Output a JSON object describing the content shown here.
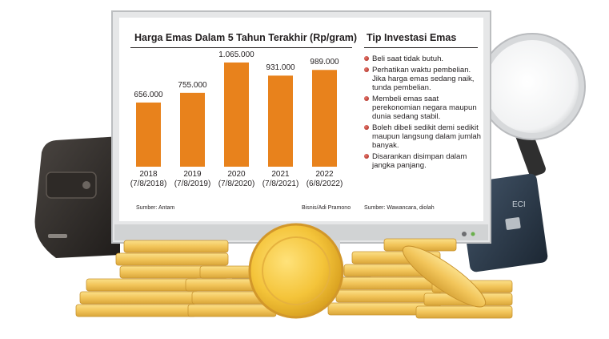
{
  "chart_data": {
    "type": "bar",
    "title": "Harga Emas Dalam 5 Tahun Terakhir (Rp/gram)",
    "categories": [
      [
        "2018",
        "(7/8/2018)"
      ],
      [
        "2019",
        "(7/8/2019)"
      ],
      [
        "2020",
        "(7/8/2020)"
      ],
      [
        "2021",
        "(7/8/2021)"
      ],
      [
        "2022",
        "(6/8/2022)"
      ]
    ],
    "values": [
      656000,
      755000,
      1065000,
      931000,
      989000
    ],
    "value_labels": [
      "656.000",
      "755.000",
      "1.065.000",
      "931.000",
      "989.000"
    ],
    "bar_color": "#e8821c",
    "source": "Sumber: Antam",
    "credit": "Bisnis/Adi Pramono"
  },
  "tips": {
    "title": "Tip Investasi Emas",
    "items": [
      "Beli saat tidak butuh.",
      "Perhatikan waktu pembelian. Jika harga emas sedang naik, tunda pembelian.",
      "Membeli emas saat perekonomian negara maupun dunia sedang stabil.",
      "Boleh dibeli sedikit demi sedikit maupun langsung dalam jumlah banyak.",
      "Disarankan disimpan dalam jangka panjang."
    ],
    "source": "Sumber: Wawancara, diolah"
  },
  "card": {
    "brand_text": "ECI"
  }
}
